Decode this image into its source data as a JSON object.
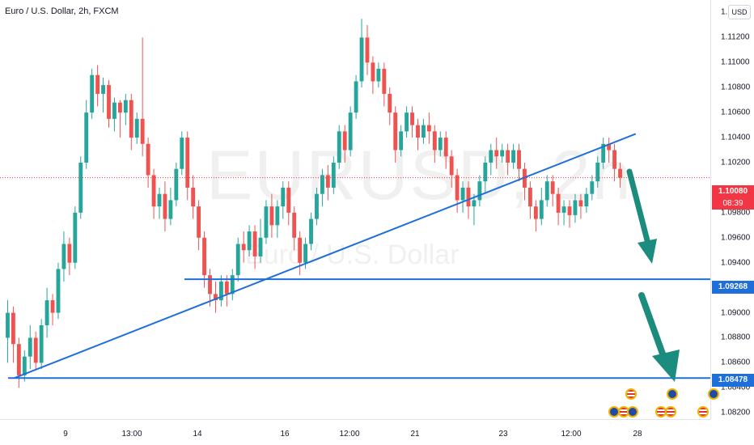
{
  "header": {
    "title": "Euro / U.S. Dollar, 2h, FXCM"
  },
  "watermark": {
    "symbol": "EURUSD, 2h",
    "description": "Euro / U.S. Dollar"
  },
  "currency_button": "USD",
  "currency_separator": "0",
  "colors": {
    "up": "#26a69a",
    "down": "#ef5350",
    "trendline": "#1e6fd9",
    "arrow": "#1b8c7d",
    "last_price": "#f23645"
  },
  "labels": {
    "last_price": "1.10080",
    "countdown": "08:39",
    "level_1": "1.09268",
    "level_2": "1.08478"
  },
  "chart_data": {
    "type": "candlestick",
    "title": "Euro / U.S. Dollar, 2h, FXCM",
    "y_ticks": [
      "1.11400",
      "1.11200",
      "1.11000",
      "1.10800",
      "1.10600",
      "1.10400",
      "1.10200",
      "1.09800",
      "1.09600",
      "1.09400",
      "1.09200",
      "1.09000",
      "1.08800",
      "1.08600",
      "1.08400",
      "1.08200"
    ],
    "x_ticks": [
      "9",
      "13:00",
      "14",
      "16",
      "12:00",
      "21",
      "23",
      "12:00",
      "28"
    ],
    "ylim": [
      1.0815,
      1.115
    ],
    "horizontal_levels": [
      1.09268,
      1.08478
    ],
    "last_price": 1.1008,
    "trendline": {
      "from": [
        0.02,
        1.08478
      ],
      "to": [
        0.895,
        1.1043
      ]
    },
    "candles": [
      [
        1.088,
        1.09,
        1.086,
        1.091
      ],
      [
        1.09,
        1.0875,
        1.086,
        1.0905
      ],
      [
        1.0875,
        1.085,
        1.084,
        1.088
      ],
      [
        1.085,
        1.0865,
        1.0845,
        1.087
      ],
      [
        1.0865,
        1.088,
        1.0855,
        1.089
      ],
      [
        1.088,
        1.086,
        1.0855,
        1.0885
      ],
      [
        1.086,
        1.089,
        1.0855,
        1.0895
      ],
      [
        1.089,
        1.091,
        1.088,
        1.092
      ],
      [
        1.091,
        1.09,
        1.089,
        1.0915
      ],
      [
        1.09,
        1.0935,
        1.0895,
        1.094
      ],
      [
        1.0935,
        1.0955,
        1.0925,
        1.0965
      ],
      [
        1.0955,
        1.094,
        1.093,
        1.096
      ],
      [
        1.094,
        1.098,
        1.0935,
        1.0985
      ],
      [
        1.098,
        1.102,
        1.0975,
        1.1025
      ],
      [
        1.102,
        1.106,
        1.1015,
        1.107
      ],
      [
        1.106,
        1.109,
        1.1055,
        1.1095
      ],
      [
        1.109,
        1.1075,
        1.1065,
        1.1098
      ],
      [
        1.1075,
        1.1082,
        1.106,
        1.1088
      ],
      [
        1.1082,
        1.1055,
        1.1048,
        1.1086
      ],
      [
        1.1055,
        1.1068,
        1.1045,
        1.1072
      ],
      [
        1.1068,
        1.106,
        1.104,
        1.107
      ],
      [
        1.106,
        1.107,
        1.105,
        1.1075
      ],
      [
        1.107,
        1.104,
        1.103,
        1.1075
      ],
      [
        1.104,
        1.1055,
        1.1035,
        1.106
      ],
      [
        1.1055,
        1.1035,
        1.1025,
        1.112
      ],
      [
        1.1035,
        1.101,
        1.1,
        1.104
      ],
      [
        1.101,
        1.0985,
        1.0975,
        1.1015
      ],
      [
        1.0985,
        1.0995,
        1.0975,
        1.1
      ],
      [
        1.0995,
        1.0975,
        1.0965,
        1.1005
      ],
      [
        1.0975,
        1.099,
        1.097,
        1.1
      ],
      [
        1.099,
        1.1015,
        1.0985,
        1.102
      ],
      [
        1.1015,
        1.104,
        1.101,
        1.1045
      ],
      [
        1.104,
        1.1,
        1.099,
        1.1045
      ],
      [
        1.1,
        1.0985,
        1.0975,
        1.101
      ],
      [
        1.0985,
        1.096,
        1.095,
        1.099
      ],
      [
        1.096,
        1.093,
        1.092,
        1.0965
      ],
      [
        1.093,
        1.0915,
        1.0905,
        1.0935
      ],
      [
        1.0915,
        1.091,
        1.09,
        1.0925
      ],
      [
        1.091,
        1.0925,
        1.0905,
        1.093
      ],
      [
        1.0925,
        1.0915,
        1.0905,
        1.093
      ],
      [
        1.0915,
        1.093,
        1.091,
        1.0935
      ],
      [
        1.093,
        1.0955,
        1.0925,
        1.096
      ],
      [
        1.0955,
        1.095,
        1.094,
        1.0965
      ],
      [
        1.095,
        1.0965,
        1.0945,
        1.097
      ],
      [
        1.0965,
        1.0945,
        1.0935,
        1.097
      ],
      [
        1.0945,
        1.096,
        1.094,
        1.0975
      ],
      [
        1.096,
        1.0985,
        1.0955,
        1.099
      ],
      [
        1.0985,
        1.097,
        1.096,
        1.0995
      ],
      [
        1.097,
        1.0985,
        1.096,
        1.099
      ],
      [
        1.0985,
        1.1,
        1.0975,
        1.1005
      ],
      [
        1.1,
        1.098,
        1.097,
        1.1005
      ],
      [
        1.098,
        1.096,
        1.095,
        1.0985
      ],
      [
        1.096,
        1.094,
        1.093,
        1.0965
      ],
      [
        1.094,
        1.0955,
        1.0935,
        1.096
      ],
      [
        1.0955,
        1.0975,
        1.095,
        1.098
      ],
      [
        1.0975,
        1.0995,
        1.097,
        1.1
      ],
      [
        1.0995,
        1.101,
        1.0985,
        1.1015
      ],
      [
        1.101,
        1.1,
        1.099,
        1.1018
      ],
      [
        1.1,
        1.102,
        1.0995,
        1.1025
      ],
      [
        1.102,
        1.1045,
        1.1015,
        1.105
      ],
      [
        1.1045,
        1.103,
        1.102,
        1.105
      ],
      [
        1.103,
        1.106,
        1.1025,
        1.1065
      ],
      [
        1.106,
        1.1085,
        1.1055,
        1.109
      ],
      [
        1.1085,
        1.112,
        1.108,
        1.1135
      ],
      [
        1.112,
        1.11,
        1.109,
        1.113
      ],
      [
        1.11,
        1.1085,
        1.1075,
        1.1105
      ],
      [
        1.1085,
        1.1095,
        1.108,
        1.11
      ],
      [
        1.1095,
        1.1075,
        1.1065,
        1.11
      ],
      [
        1.1075,
        1.106,
        1.105,
        1.108
      ],
      [
        1.106,
        1.103,
        1.102,
        1.1065
      ],
      [
        1.103,
        1.1045,
        1.1025,
        1.105
      ],
      [
        1.1045,
        1.106,
        1.104,
        1.1065
      ],
      [
        1.106,
        1.105,
        1.104,
        1.1065
      ],
      [
        1.105,
        1.104,
        1.103,
        1.1055
      ],
      [
        1.104,
        1.105,
        1.1035,
        1.1055
      ],
      [
        1.105,
        1.1045,
        1.1035,
        1.106
      ],
      [
        1.1045,
        1.103,
        1.102,
        1.105
      ],
      [
        1.103,
        1.104,
        1.1025,
        1.1045
      ],
      [
        1.104,
        1.1025,
        1.1015,
        1.1045
      ],
      [
        1.1025,
        1.101,
        1.1,
        1.103
      ],
      [
        1.101,
        1.099,
        1.098,
        1.1015
      ],
      [
        1.099,
        1.1,
        1.098,
        1.1005
      ],
      [
        1.1,
        1.0985,
        1.0975,
        1.1005
      ],
      [
        1.0985,
        1.099,
        1.097,
        1.0995
      ],
      [
        1.099,
        1.1005,
        1.0985,
        1.101
      ],
      [
        1.1005,
        1.102,
        1.0995,
        1.1025
      ],
      [
        1.102,
        1.103,
        1.101,
        1.1035
      ],
      [
        1.103,
        1.1025,
        1.1015,
        1.104
      ],
      [
        1.1025,
        1.103,
        1.102,
        1.1035
      ],
      [
        1.103,
        1.102,
        1.101,
        1.1035
      ],
      [
        1.102,
        1.103,
        1.1015,
        1.1035
      ],
      [
        1.103,
        1.1015,
        1.1005,
        1.1035
      ],
      [
        1.1015,
        1.1,
        1.099,
        1.102
      ],
      [
        1.1,
        1.0985,
        1.0975,
        1.1005
      ],
      [
        1.0985,
        1.0975,
        1.0965,
        1.099
      ],
      [
        1.0975,
        1.099,
        1.097,
        1.1
      ],
      [
        1.099,
        1.1005,
        1.0985,
        1.101
      ],
      [
        1.1005,
        1.0995,
        1.0985,
        1.101
      ],
      [
        1.0995,
        1.098,
        1.097,
        1.1
      ],
      [
        1.098,
        1.0985,
        1.097,
        1.099
      ],
      [
        1.0985,
        1.0978,
        1.0968,
        1.099
      ],
      [
        1.0978,
        1.099,
        1.0972,
        1.0995
      ],
      [
        1.099,
        1.0985,
        1.0975,
        1.0995
      ],
      [
        1.0985,
        1.0995,
        1.098,
        1.1
      ],
      [
        1.0995,
        1.1005,
        1.099,
        1.101
      ],
      [
        1.1005,
        1.102,
        1.1,
        1.1025
      ],
      [
        1.102,
        1.1035,
        1.1015,
        1.104
      ],
      [
        1.1035,
        1.103,
        1.102,
        1.104
      ],
      [
        1.103,
        1.1015,
        1.1005,
        1.1035
      ],
      [
        1.1015,
        1.1008,
        1.1,
        1.102
      ]
    ]
  }
}
